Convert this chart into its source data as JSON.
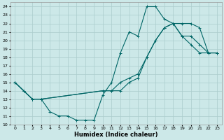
{
  "xlabel": "Humidex (Indice chaleur)",
  "bg_color": "#cce8e8",
  "line_color": "#006666",
  "grid_color": "#aacccc",
  "xlim": [
    -0.5,
    23.5
  ],
  "ylim": [
    10,
    24.5
  ],
  "xticks": [
    0,
    1,
    2,
    3,
    4,
    5,
    6,
    7,
    8,
    9,
    10,
    11,
    12,
    13,
    14,
    15,
    16,
    17,
    18,
    19,
    20,
    21,
    22,
    23
  ],
  "yticks": [
    10,
    11,
    12,
    13,
    14,
    15,
    16,
    17,
    18,
    19,
    20,
    21,
    22,
    23,
    24
  ],
  "line1_x": [
    0,
    1,
    2,
    3,
    4,
    5,
    6,
    7,
    8,
    9,
    10,
    11,
    12,
    13,
    14,
    15,
    16,
    17,
    18,
    19,
    20,
    21,
    22,
    23
  ],
  "line1_y": [
    15,
    14,
    13,
    13,
    11.5,
    11,
    11,
    10.5,
    10.5,
    10.5,
    13.5,
    15,
    18.5,
    21,
    20.5,
    24,
    24,
    22.5,
    22,
    20.5,
    19.5,
    18.5,
    18.5,
    18.5
  ],
  "line2_x": [
    0,
    1,
    2,
    3,
    10,
    11,
    12,
    13,
    14,
    15,
    16,
    17,
    18,
    19,
    20,
    21,
    22,
    23
  ],
  "line2_y": [
    15,
    14,
    13,
    13,
    14,
    14,
    14,
    15,
    15.5,
    18,
    20,
    21.5,
    22,
    20.5,
    20.5,
    19.5,
    18.5,
    18.5
  ],
  "line3_x": [
    0,
    2,
    3,
    10,
    11,
    12,
    13,
    14,
    15,
    16,
    17,
    18,
    19,
    20,
    21,
    22,
    23
  ],
  "line3_y": [
    15,
    13,
    13,
    14,
    14,
    15,
    15.5,
    16,
    18,
    20,
    21.5,
    22,
    22,
    22,
    21.5,
    18.5,
    18.5
  ]
}
